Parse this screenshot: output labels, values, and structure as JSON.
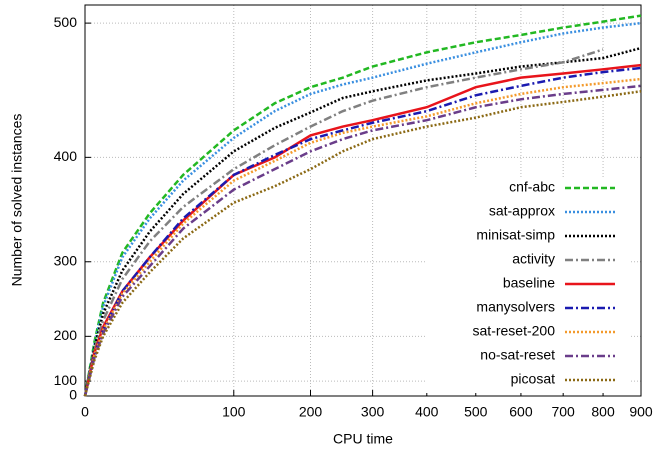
{
  "chart_data": {
    "type": "line",
    "x_label": "CPU time",
    "y_label": "Number of solved instances",
    "x": [
      0,
      1,
      3,
      10,
      25,
      50,
      100,
      150,
      200,
      250,
      300,
      400,
      500,
      600,
      700,
      800,
      900
    ],
    "xlim": [
      0,
      900
    ],
    "ylim": [
      0,
      512
    ],
    "xscale": {
      "type": "power",
      "exponent": 0.6
    },
    "yscale": {
      "type": "power",
      "exponent": 2
    },
    "xticks": [
      0,
      100,
      200,
      300,
      400,
      500,
      600,
      700,
      800,
      900
    ],
    "yticks": [
      0,
      100,
      200,
      300,
      400,
      500
    ],
    "grid": true,
    "legend": "lower right",
    "series": [
      {
        "name": "cnf-abc",
        "color": "#22b822",
        "style": "dashed",
        "values": [
          0,
          190,
          250,
          310,
          350,
          385,
          422,
          443,
          455,
          462,
          470,
          480,
          487,
          492,
          497,
          501,
          505
        ]
      },
      {
        "name": "sat-approx",
        "color": "#3a8fe0",
        "style": "dotted",
        "values": [
          0,
          185,
          245,
          305,
          345,
          380,
          416,
          437,
          450,
          457,
          462,
          472,
          480,
          487,
          493,
          497,
          500
        ]
      },
      {
        "name": "minisat-simp",
        "color": "#000000",
        "style": "dotted",
        "values": [
          0,
          180,
          235,
          290,
          332,
          368,
          405,
          424,
          436,
          447,
          452,
          460,
          465,
          470,
          473,
          476,
          483
        ]
      },
      {
        "name": "activity",
        "color": "#808080",
        "style": "dashdot",
        "values": [
          0,
          175,
          225,
          280,
          322,
          356,
          390,
          410,
          425,
          437,
          445,
          455,
          462,
          468,
          473,
          482,
          null
        ]
      },
      {
        "name": "baseline",
        "color": "#e8141b",
        "style": "solid",
        "values": [
          0,
          170,
          215,
          265,
          305,
          343,
          385,
          400,
          418,
          425,
          430,
          440,
          455,
          462,
          465,
          468,
          471
        ]
      },
      {
        "name": "manysolvers",
        "color": "#1a1ab0",
        "style": "dashdot",
        "values": [
          0,
          165,
          210,
          265,
          305,
          345,
          385,
          402,
          415,
          422,
          428,
          437,
          449,
          456,
          462,
          466,
          469
        ]
      },
      {
        "name": "sat-reset-200",
        "color": "#f39a2c",
        "style": "dotted",
        "values": [
          0,
          165,
          210,
          262,
          300,
          340,
          380,
          397,
          412,
          420,
          425,
          433,
          443,
          450,
          455,
          458,
          461
        ]
      },
      {
        "name": "no-sat-reset",
        "color": "#6a3d8a",
        "style": "dashdot",
        "values": [
          0,
          160,
          205,
          258,
          295,
          335,
          372,
          390,
          405,
          415,
          422,
          430,
          440,
          446,
          450,
          453,
          456
        ]
      },
      {
        "name": "picosat",
        "color": "#8b6914",
        "style": "dotted",
        "values": [
          0,
          155,
          200,
          250,
          288,
          325,
          360,
          375,
          390,
          405,
          415,
          425,
          432,
          440,
          444,
          448,
          452
        ]
      }
    ]
  }
}
